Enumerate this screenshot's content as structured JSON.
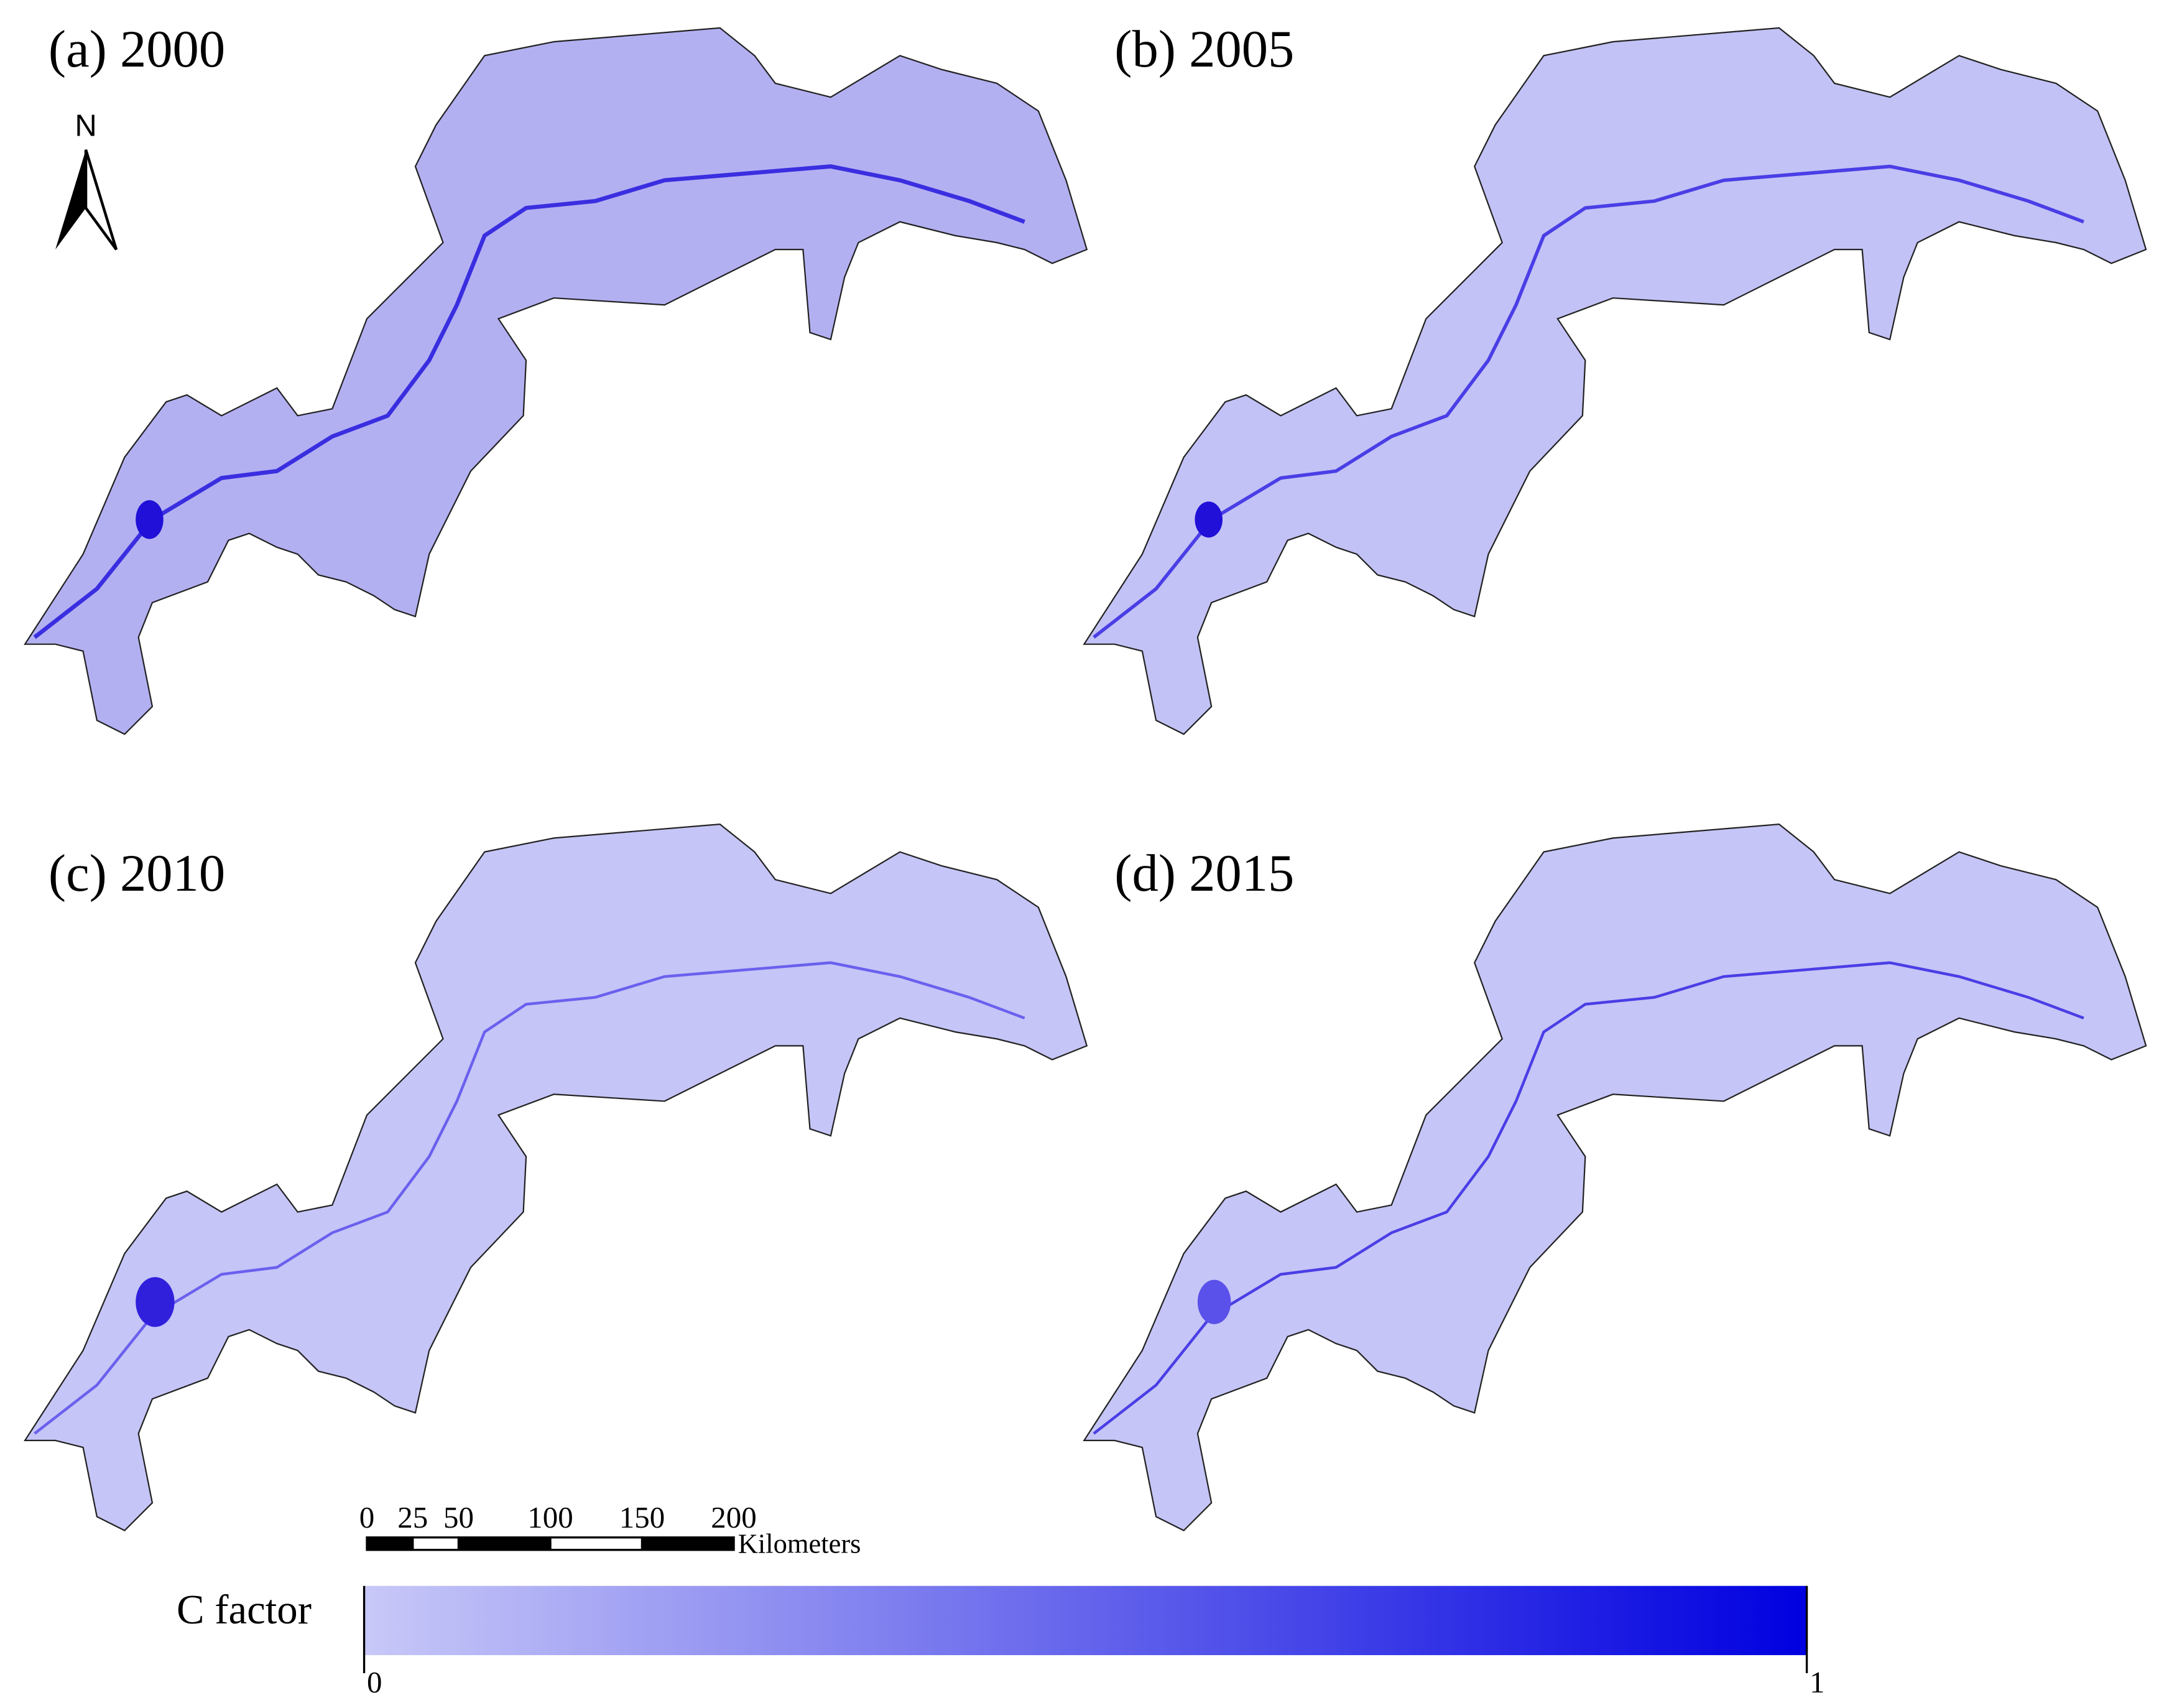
{
  "panels": [
    {
      "label": "(a) 2000"
    },
    {
      "label": "(b) 2005"
    },
    {
      "label": "(c) 2010"
    },
    {
      "label": "(d) 2015"
    }
  ],
  "north_arrow": "N",
  "scale_bar": {
    "ticks": [
      0,
      25,
      50,
      100,
      150,
      200
    ],
    "unit": "Kilometers"
  },
  "colorbar": {
    "title": "C factor",
    "range": [
      0,
      1
    ],
    "colors": [
      "#c8c8f8",
      "#0000e0"
    ]
  }
}
